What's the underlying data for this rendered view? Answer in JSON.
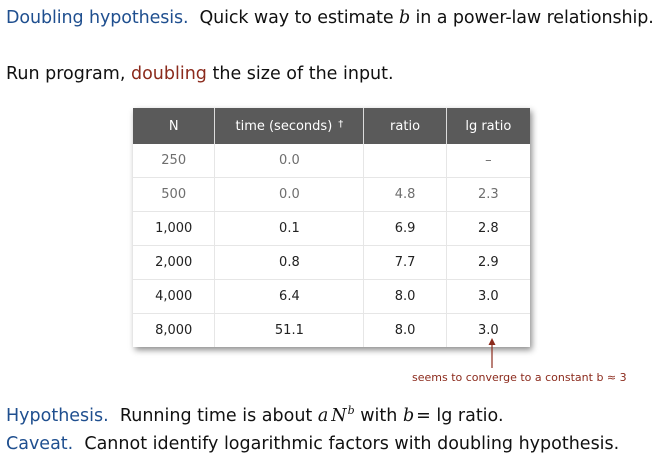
{
  "heading": {
    "term": "Doubling hypothesis.",
    "text_before": "Quick way to estimate",
    "variable": "b",
    "text_after": "in a power-law relationship."
  },
  "intro": {
    "before": "Run program,",
    "highlight": "doubling",
    "after": "the size of the input."
  },
  "table": {
    "headers": {
      "n": "N",
      "time": "time (seconds)",
      "time_mark": "†",
      "ratio": "ratio",
      "lg_ratio": "lg ratio"
    },
    "rows": [
      {
        "n": "250",
        "time": "0.0",
        "ratio": "",
        "lg": "–"
      },
      {
        "n": "500",
        "time": "0.0",
        "ratio": "4.8",
        "lg": "2.3"
      },
      {
        "n": "1,000",
        "time": "0.1",
        "ratio": "6.9",
        "lg": "2.8"
      },
      {
        "n": "2,000",
        "time": "0.8",
        "ratio": "7.7",
        "lg": "2.9"
      },
      {
        "n": "4,000",
        "time": "6.4",
        "ratio": "8.0",
        "lg": "3.0"
      },
      {
        "n": "8,000",
        "time": "51.1",
        "ratio": "8.0",
        "lg": "3.0"
      }
    ]
  },
  "annotation": "seems to converge to a constant b ≈ 3",
  "hypothesis": {
    "term": "Hypothesis.",
    "before": "Running time is about",
    "a": "a",
    "n": "N",
    "exp": "b",
    "with": "with",
    "b": "b",
    "equals": "= lg ratio."
  },
  "caveat": {
    "term": "Caveat.",
    "text": "Cannot identify logarithmic factors with doubling hypothesis."
  },
  "colors": {
    "term": "#1f4f8f",
    "accent": "#8b2a1c",
    "header_bg": "#5a5a5a"
  }
}
